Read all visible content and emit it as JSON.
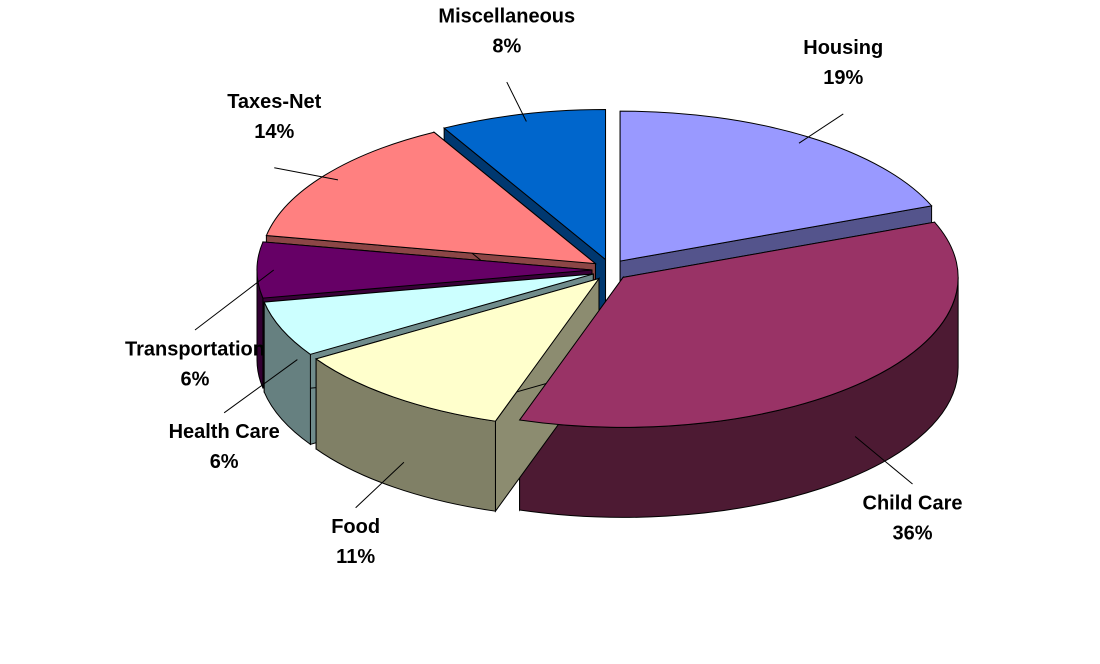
{
  "chart_data": {
    "type": "pie",
    "categories": [
      "Housing",
      "Child Care",
      "Food",
      "Health Care",
      "Transportation",
      "Taxes-Net",
      "Miscellaneous"
    ],
    "values": [
      19,
      36,
      11,
      6,
      6,
      14,
      8
    ],
    "value_labels": [
      "19%",
      "36%",
      "11%",
      "6%",
      "6%",
      "14%",
      "8%"
    ],
    "colors": [
      "#9999ff",
      "#993366",
      "#ffffcc",
      "#ccffff",
      "#660066",
      "#ff8080",
      "#0066cc"
    ]
  }
}
